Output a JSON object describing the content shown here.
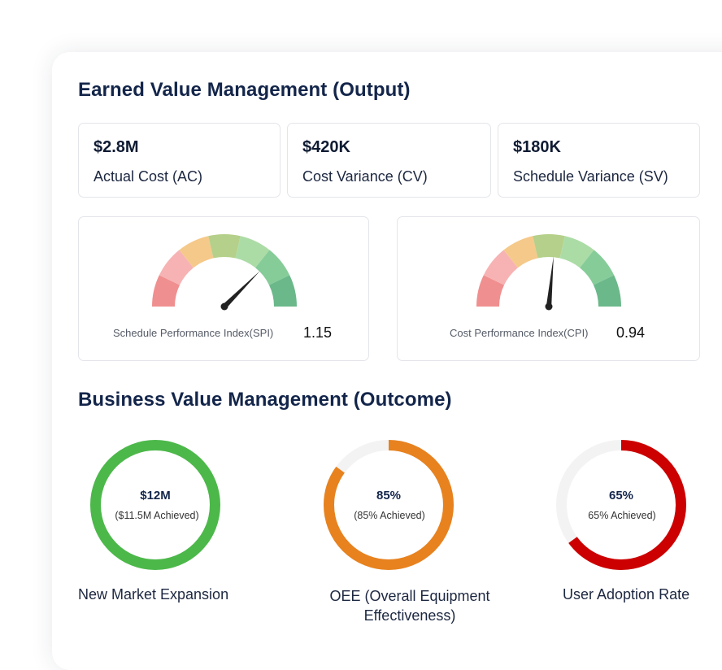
{
  "evm": {
    "title": "Earned Value Management (Output)",
    "stats": [
      {
        "value": "$2.8M",
        "label": "Actual Cost (AC)"
      },
      {
        "value": "$420K",
        "label": "Cost Variance (CV)"
      },
      {
        "value": "$180K",
        "label": "Schedule Variance (SV)"
      }
    ],
    "gauges": [
      {
        "label": "Schedule Performance Index(SPI)",
        "value": "1.15",
        "needle_fraction": 0.75
      },
      {
        "label": "Cost Performance Index(CPI)",
        "value": "0.94",
        "needle_fraction": 0.53
      }
    ],
    "gauge_colors": [
      "#f08f8f",
      "#f7b3b3",
      "#f5c98a",
      "#b5d08a",
      "#acdca6",
      "#86cc99",
      "#6bb88a"
    ],
    "needle_color": "#222222"
  },
  "bvm": {
    "title": "Business Value Management (Outcome)",
    "rings": [
      {
        "value": "$12M",
        "sub": "($11.5M Achieved)",
        "title": "New Market Expansion",
        "progress": 1.0,
        "color": "#4cb84a"
      },
      {
        "value": "85%",
        "sub": "(85% Achieved)",
        "title": "OEE (Overall Equipment Effectiveness)",
        "progress": 0.85,
        "color": "#e7821f"
      },
      {
        "value": "65%",
        "sub": "65% Achieved)",
        "title": "User Adoption Rate",
        "progress": 0.65,
        "color": "#cc0000"
      }
    ],
    "track_color": "#f3f3f3"
  }
}
